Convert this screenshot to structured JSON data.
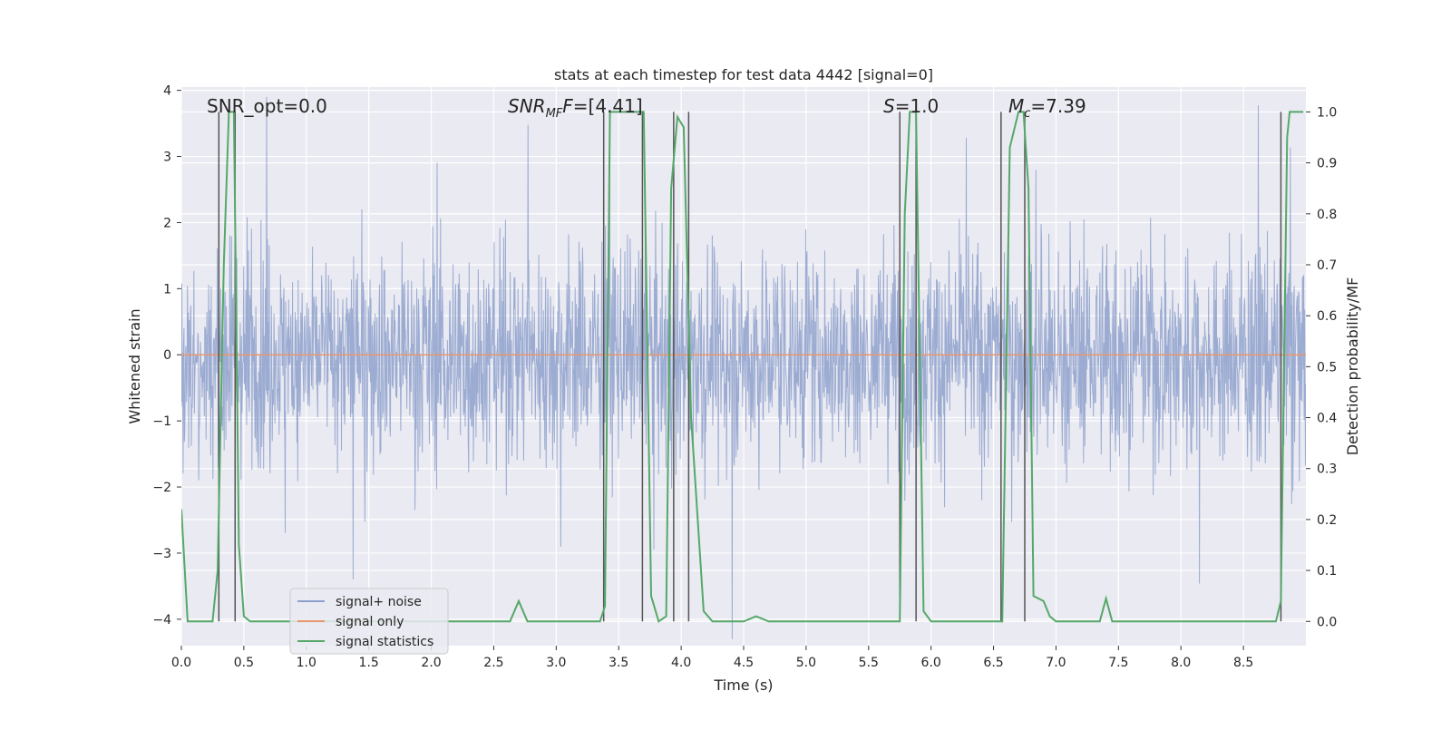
{
  "chart_data": {
    "type": "line",
    "title": "stats at each timestep for test data 4442 [signal=0]",
    "xlabel": "Time (s)",
    "ylabel": "Whitened strain",
    "y2label": "Detection probability/MF",
    "xlim": [
      0.0,
      9.0
    ],
    "ylim": [
      -4.4,
      4.05
    ],
    "y2lim": [
      -0.0476,
      1.0488
    ],
    "grid": true,
    "xticks": [
      "0.0",
      "0.5",
      "1.0",
      "1.5",
      "2.0",
      "2.5",
      "3.0",
      "3.5",
      "4.0",
      "4.5",
      "5.0",
      "5.5",
      "6.0",
      "6.5",
      "7.0",
      "7.5",
      "8.0",
      "8.5"
    ],
    "xtick_values": [
      0.0,
      0.5,
      1.0,
      1.5,
      2.0,
      2.5,
      3.0,
      3.5,
      4.0,
      4.5,
      5.0,
      5.5,
      6.0,
      6.5,
      7.0,
      7.5,
      8.0,
      8.5
    ],
    "yticks": [
      "4",
      "3",
      "2",
      "1",
      "0",
      "−1",
      "−2",
      "−3",
      "−4"
    ],
    "ytick_values": [
      4,
      3,
      2,
      1,
      0,
      -1,
      -2,
      -3,
      -4
    ],
    "y2ticks": [
      "1.0",
      "0.9",
      "0.8",
      "0.7",
      "0.6",
      "0.5",
      "0.4",
      "0.3",
      "0.2",
      "0.1",
      "0.0"
    ],
    "y2tick_values": [
      1.0,
      0.9,
      0.8,
      0.7,
      0.6,
      0.5,
      0.4,
      0.3,
      0.2,
      0.1,
      0.0
    ],
    "annotations": {
      "snr_opt": "SNR_opt=0.0",
      "snr_mf_main": "SNR",
      "snr_mf_sub": "MF",
      "snr_mf_value": "=[4.41]",
      "s_main": "S",
      "s_value": "=1.0",
      "mc_main": "M",
      "mc_sub": "c",
      "mc_value": "=7.39"
    },
    "legend": {
      "placement": "lower-left",
      "entries": [
        "signal+ noise",
        "signal only",
        "signal statistics"
      ]
    },
    "colors": {
      "noise": "#8da0cb",
      "signal": "#e8976e",
      "stats": "#55a868",
      "vlines": "#555555",
      "background": "#eaeaf2",
      "grid": "#ffffff"
    },
    "series": [
      {
        "name": "signal+ noise",
        "kind": "noise",
        "envelope": {
          "typical_abs": 1.35,
          "max": 3.9,
          "min": -4.3
        }
      },
      {
        "name": "signal only",
        "kind": "flat",
        "value": 0.0
      },
      {
        "name": "signal statistics",
        "axis": "right",
        "x": [
          0.0,
          0.05,
          0.25,
          0.29,
          0.34,
          0.38,
          0.42,
          0.46,
          0.5,
          0.55,
          1.0,
          1.5,
          2.0,
          2.5,
          2.63,
          2.7,
          2.77,
          2.85,
          3.0,
          3.2,
          3.35,
          3.39,
          3.43,
          3.48,
          3.5,
          3.7,
          3.76,
          3.82,
          3.88,
          3.92,
          3.97,
          4.02,
          4.08,
          4.18,
          4.25,
          4.5,
          4.6,
          4.7,
          5.0,
          5.5,
          5.75,
          5.79,
          5.83,
          5.88,
          5.94,
          6.0,
          6.5,
          6.57,
          6.63,
          6.7,
          6.74,
          6.78,
          6.82,
          6.9,
          6.95,
          7.0,
          7.05,
          7.1,
          7.35,
          7.4,
          7.45,
          7.5,
          8.0,
          8.5,
          8.76,
          8.8,
          8.85,
          8.87,
          8.93,
          8.98
        ],
        "y": [
          0.22,
          0.0,
          0.0,
          0.1,
          0.7,
          1.0,
          1.0,
          0.15,
          0.01,
          0.0,
          0.0,
          0.0,
          0.0,
          0.0,
          0.0,
          0.04,
          0.0,
          0.0,
          0.0,
          0.0,
          0.0,
          0.03,
          1.0,
          1.0,
          1.0,
          1.0,
          0.05,
          0.0,
          0.01,
          0.85,
          0.99,
          0.97,
          0.4,
          0.02,
          0.0,
          0.0,
          0.01,
          0.0,
          0.0,
          0.0,
          0.0,
          0.8,
          1.0,
          1.0,
          0.02,
          0.0,
          0.0,
          0.0,
          0.93,
          1.0,
          1.0,
          0.85,
          0.05,
          0.04,
          0.01,
          0.0,
          0.0,
          0.0,
          0.0,
          0.045,
          0.0,
          0.0,
          0.0,
          0.0,
          0.0,
          0.04,
          0.95,
          1.0,
          1.0,
          1.0
        ]
      }
    ],
    "vertical_lines": [
      0.3,
      0.43,
      3.38,
      3.69,
      3.94,
      4.06,
      5.75,
      5.88,
      6.56,
      6.75,
      8.8
    ]
  }
}
